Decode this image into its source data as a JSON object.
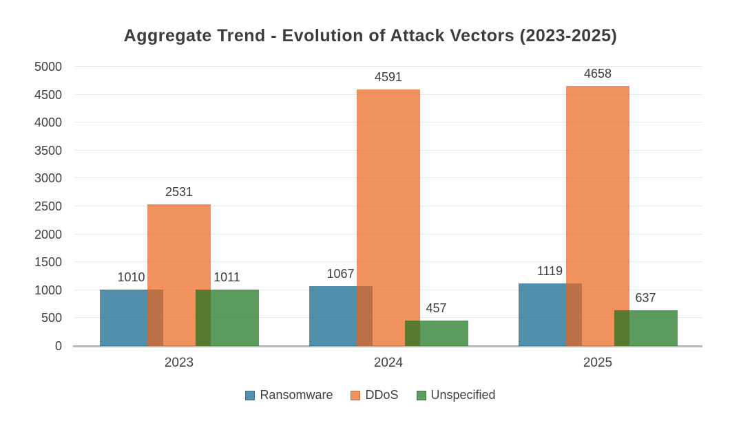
{
  "chart_data": {
    "type": "bar",
    "title": "Aggregate Trend - Evolution of Attack Vectors (2023-2025)",
    "categories": [
      "2023",
      "2024",
      "2025"
    ],
    "series": [
      {
        "name": "Ransomware",
        "values": [
          1010,
          1067,
          1119
        ],
        "color": "#538FAE",
        "fill_rgb": "8,95,138"
      },
      {
        "name": "DDoS",
        "values": [
          2531,
          4591,
          4658
        ],
        "color": "#F0925E",
        "fill_rgb": "234,99,25"
      },
      {
        "name": "Unspecified",
        "values": [
          1011,
          457,
          637
        ],
        "color": "#5B9B5E",
        "fill_rgb": "21,112,25"
      }
    ],
    "fill_alpha": 0.7,
    "bars_overlap": true,
    "data_labels": true,
    "xlabel": "",
    "ylabel": "",
    "ylim": [
      0,
      5000
    ],
    "ytick_step": 500,
    "ytick_labels": [
      "0",
      "500",
      "1000",
      "1500",
      "2000",
      "2500",
      "3000",
      "3500",
      "4000",
      "4500",
      "5000"
    ],
    "grid": "horizontal",
    "legend_position": "bottom",
    "colors": {
      "gridline": "#E6E6E6",
      "baseline": "#ACACAC",
      "axis_text": "#3F3F3F",
      "title_text": "#3D3D3D",
      "background": "#FFFFFF"
    }
  }
}
